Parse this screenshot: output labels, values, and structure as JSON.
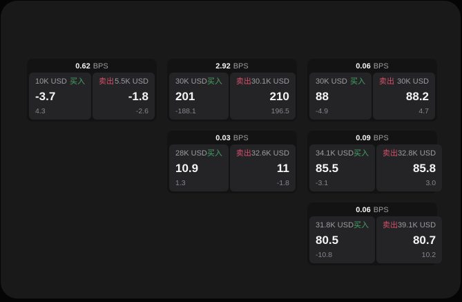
{
  "colors": {
    "background": "#050505",
    "window": "#19191a",
    "card": "#131314",
    "panel": "#242427",
    "green": "#46a567",
    "red": "#d4506a",
    "text_primary": "#f4f4f5",
    "text_secondary": "#9d9da1",
    "text_muted": "#86868b"
  },
  "labels": {
    "bps_unit": "BPS",
    "buy": "买入",
    "sell": "卖出"
  },
  "cards": [
    {
      "col": 0,
      "row": 0,
      "bps": "0.62",
      "buy": {
        "amount": "10K USD",
        "value": "-3.7",
        "delta": "4.3"
      },
      "sell": {
        "amount": "5.5K USD",
        "value": "-1.8",
        "delta": "-2.6"
      }
    },
    {
      "col": 1,
      "row": 0,
      "bps": "2.92",
      "buy": {
        "amount": "30K USD",
        "value": "201",
        "delta": "-188.1"
      },
      "sell": {
        "amount": "30.1K USD",
        "value": "210",
        "delta": "196.5"
      }
    },
    {
      "col": 2,
      "row": 0,
      "bps": "0.06",
      "buy": {
        "amount": "30K USD",
        "value": "88",
        "delta": "-4.9"
      },
      "sell": {
        "amount": "30K USD",
        "value": "88.2",
        "delta": "4.7"
      }
    },
    {
      "col": 1,
      "row": 1,
      "bps": "0.03",
      "buy": {
        "amount": "28K USD",
        "value": "10.9",
        "delta": "1.3"
      },
      "sell": {
        "amount": "32.6K USD",
        "value": "11",
        "delta": "-1.8"
      }
    },
    {
      "col": 2,
      "row": 1,
      "bps": "0.09",
      "buy": {
        "amount": "34.1K USD",
        "value": "85.5",
        "delta": "-3.1"
      },
      "sell": {
        "amount": "32.8K USD",
        "value": "85.8",
        "delta": "3.0"
      }
    },
    {
      "col": 2,
      "row": 2,
      "bps": "0.06",
      "buy": {
        "amount": "31.8K USD",
        "value": "80.5",
        "delta": "-10.8"
      },
      "sell": {
        "amount": "39.1K USD",
        "value": "80.7",
        "delta": "10.2"
      }
    }
  ]
}
